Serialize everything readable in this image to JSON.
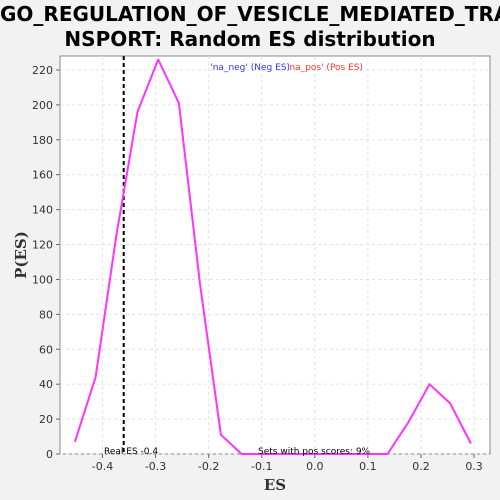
{
  "chart_data": {
    "type": "line",
    "title_line1": "GO_REGULATION_OF_VESICLE_MEDIATED_TRA",
    "title_line2": "NSPORT: Random ES distribution",
    "xlabel": "ES",
    "ylabel": "P(ES)",
    "xlim": [
      -0.48,
      0.33
    ],
    "ylim": [
      0,
      228
    ],
    "x_ticks": [
      -0.4,
      -0.3,
      -0.2,
      -0.1,
      0.0,
      0.1,
      0.2,
      0.3
    ],
    "x_tick_labels": [
      "-0.4",
      "-0.3",
      "-0.2",
      "-0.1",
      "0.0",
      "0.1",
      "0.2",
      "0.3"
    ],
    "y_ticks": [
      0,
      20,
      40,
      60,
      80,
      100,
      120,
      140,
      160,
      180,
      200,
      220
    ],
    "y_tick_labels": [
      "0",
      "20",
      "40",
      "60",
      "80",
      "100",
      "120",
      "140",
      "160",
      "180",
      "200",
      "220"
    ],
    "grid": true,
    "series": [
      {
        "color": "#ff33ff",
        "x": [
          -0.452,
          -0.413,
          -0.374,
          -0.334,
          -0.295,
          -0.256,
          -0.216,
          -0.177,
          -0.138,
          -0.099,
          -0.059,
          -0.02,
          0.019,
          0.058,
          0.098,
          0.137,
          0.176,
          0.216,
          0.255,
          0.294
        ],
        "y": [
          7,
          44,
          125,
          196,
          226,
          201,
          97,
          11,
          0,
          0,
          0,
          0,
          0,
          0,
          0,
          0,
          18,
          40,
          29,
          6
        ]
      }
    ],
    "real_es": -0.36,
    "legend": {
      "neg": "'na_neg' (Neg ES)",
      "pos": "'na_pos' (Pos ES)"
    },
    "annotations": {
      "real_es": "Real ES -0.4",
      "pos_scores": "Sets with pos scores: 9%"
    }
  }
}
